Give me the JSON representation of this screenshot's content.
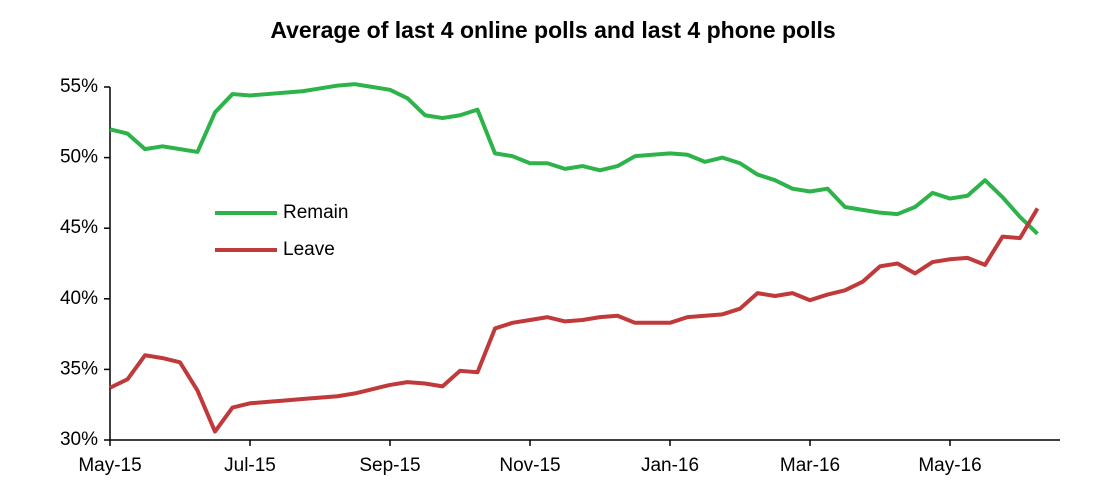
{
  "chart_data": {
    "type": "line",
    "title": "Average of last 4 online polls and last 4 phone polls",
    "categories": [
      "May-15",
      null,
      null,
      null,
      null,
      null,
      null,
      null,
      "Jul-15",
      null,
      null,
      null,
      null,
      null,
      null,
      null,
      "Sep-15",
      null,
      null,
      null,
      null,
      null,
      null,
      null,
      "Nov-15",
      null,
      null,
      null,
      null,
      null,
      null,
      null,
      "Jan-16",
      null,
      null,
      null,
      null,
      null,
      null,
      null,
      "Mar-16",
      null,
      null,
      null,
      null,
      null,
      null,
      null,
      "May-16",
      null,
      null,
      null,
      null,
      null
    ],
    "series": [
      {
        "name": "Remain",
        "color": "#2db34a",
        "values": [
          52.0,
          51.7,
          50.6,
          50.8,
          50.6,
          50.4,
          53.2,
          54.5,
          54.4,
          54.5,
          54.6,
          54.7,
          54.9,
          55.1,
          55.2,
          55.0,
          54.8,
          54.2,
          53.0,
          52.8,
          53.0,
          53.4,
          50.3,
          50.1,
          49.6,
          49.6,
          49.2,
          49.4,
          49.1,
          49.4,
          50.1,
          50.2,
          50.3,
          50.2,
          49.7,
          50.0,
          49.6,
          48.8,
          48.4,
          47.8,
          47.6,
          47.8,
          46.5,
          46.3,
          46.1,
          46.0,
          46.5,
          47.5,
          47.1,
          47.3,
          48.4,
          47.2,
          45.8,
          44.6
        ]
      },
      {
        "name": "Leave",
        "color": "#c0393b",
        "values": [
          33.7,
          34.3,
          36.0,
          35.8,
          35.5,
          33.5,
          30.6,
          32.3,
          32.6,
          32.7,
          32.8,
          32.9,
          33.0,
          33.1,
          33.3,
          33.6,
          33.9,
          34.1,
          34.0,
          33.8,
          34.9,
          34.8,
          37.9,
          38.3,
          38.5,
          38.7,
          38.4,
          38.5,
          38.7,
          38.8,
          38.3,
          38.3,
          38.3,
          38.7,
          38.8,
          38.9,
          39.3,
          40.4,
          40.2,
          40.4,
          39.9,
          40.3,
          40.6,
          41.2,
          42.3,
          42.5,
          41.8,
          42.6,
          42.8,
          42.9,
          42.4,
          44.4,
          44.3,
          46.4
        ]
      }
    ],
    "ylim": [
      30,
      55
    ],
    "yticks": [
      {
        "value": 30,
        "label": "30%"
      },
      {
        "value": 35,
        "label": "35%"
      },
      {
        "value": 40,
        "label": "40%"
      },
      {
        "value": 45,
        "label": "45%"
      },
      {
        "value": 50,
        "label": "50%"
      },
      {
        "value": 55,
        "label": "55%"
      }
    ],
    "legend": "left"
  }
}
